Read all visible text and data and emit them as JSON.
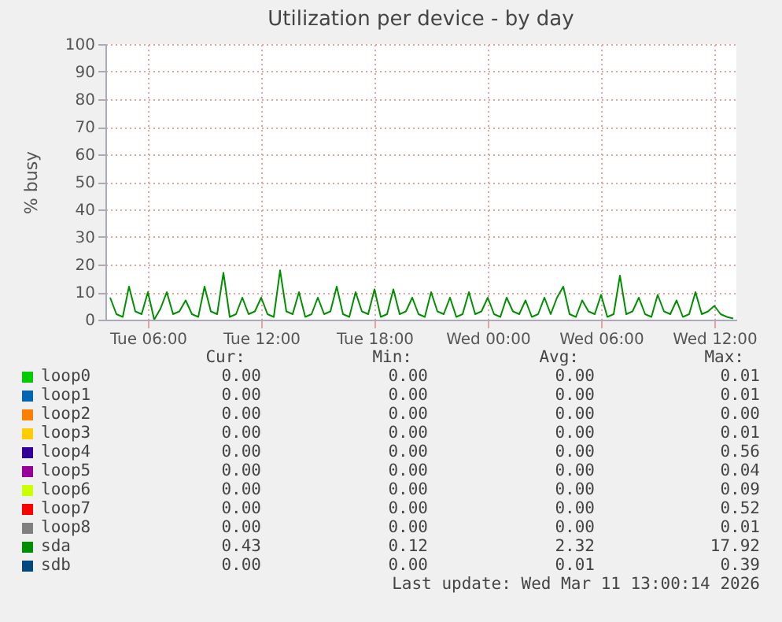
{
  "chart_data": {
    "type": "line",
    "title": "Utilization per device - by day",
    "ylabel": "% busy",
    "x": [
      "2026-03-10T04:00",
      "2026-03-10T04:20",
      "2026-03-10T04:40",
      "2026-03-10T05:00",
      "2026-03-10T05:20",
      "2026-03-10T05:40",
      "2026-03-10T06:00",
      "2026-03-10T06:20",
      "2026-03-10T06:40",
      "2026-03-10T07:00",
      "2026-03-10T07:20",
      "2026-03-10T07:40",
      "2026-03-10T08:00",
      "2026-03-10T08:20",
      "2026-03-10T08:40",
      "2026-03-10T09:00",
      "2026-03-10T09:20",
      "2026-03-10T09:40",
      "2026-03-10T10:00",
      "2026-03-10T10:20",
      "2026-03-10T10:40",
      "2026-03-10T11:00",
      "2026-03-10T11:20",
      "2026-03-10T11:40",
      "2026-03-10T12:00",
      "2026-03-10T12:20",
      "2026-03-10T12:40",
      "2026-03-10T13:00",
      "2026-03-10T13:20",
      "2026-03-10T13:40",
      "2026-03-10T14:00",
      "2026-03-10T14:20",
      "2026-03-10T14:40",
      "2026-03-10T15:00",
      "2026-03-10T15:20",
      "2026-03-10T15:40",
      "2026-03-10T16:00",
      "2026-03-10T16:20",
      "2026-03-10T16:40",
      "2026-03-10T17:00",
      "2026-03-10T17:20",
      "2026-03-10T17:40",
      "2026-03-10T18:00",
      "2026-03-10T18:20",
      "2026-03-10T18:40",
      "2026-03-10T19:00",
      "2026-03-10T19:20",
      "2026-03-10T19:40",
      "2026-03-10T20:00",
      "2026-03-10T20:20",
      "2026-03-10T20:40",
      "2026-03-10T21:00",
      "2026-03-10T21:20",
      "2026-03-10T21:40",
      "2026-03-10T22:00",
      "2026-03-10T22:20",
      "2026-03-10T22:40",
      "2026-03-10T23:00",
      "2026-03-10T23:20",
      "2026-03-10T23:40",
      "2026-03-11T00:00",
      "2026-03-11T00:20",
      "2026-03-11T00:40",
      "2026-03-11T01:00",
      "2026-03-11T01:20",
      "2026-03-11T01:40",
      "2026-03-11T02:00",
      "2026-03-11T02:20",
      "2026-03-11T02:40",
      "2026-03-11T03:00",
      "2026-03-11T03:20",
      "2026-03-11T03:40",
      "2026-03-11T04:00",
      "2026-03-11T04:20",
      "2026-03-11T04:40",
      "2026-03-11T05:00",
      "2026-03-11T05:20",
      "2026-03-11T05:40",
      "2026-03-11T06:00",
      "2026-03-11T06:20",
      "2026-03-11T06:40",
      "2026-03-11T07:00",
      "2026-03-11T07:20",
      "2026-03-11T07:40",
      "2026-03-11T08:00",
      "2026-03-11T08:20",
      "2026-03-11T08:40",
      "2026-03-11T09:00",
      "2026-03-11T09:20",
      "2026-03-11T09:40",
      "2026-03-11T10:00",
      "2026-03-11T10:20",
      "2026-03-11T10:40",
      "2026-03-11T11:00",
      "2026-03-11T11:20",
      "2026-03-11T11:40",
      "2026-03-11T12:00",
      "2026-03-11T12:20",
      "2026-03-11T12:40",
      "2026-03-11T13:00"
    ],
    "series": [
      {
        "name": "loop0",
        "color": "#00cc00",
        "values": [
          null,
          null,
          null,
          null,
          null,
          null,
          null,
          null,
          null,
          null,
          null,
          null,
          null,
          null,
          null,
          null,
          null,
          null,
          null,
          null,
          null,
          null,
          null,
          null,
          null,
          null,
          null,
          null,
          null,
          null,
          null,
          null,
          null,
          null,
          null,
          null,
          null,
          null,
          null,
          null,
          null,
          null,
          null,
          null,
          null,
          null,
          null,
          null,
          null,
          null,
          null,
          null,
          null,
          null,
          null,
          null,
          null,
          null,
          null,
          null,
          null,
          null,
          null,
          null,
          null,
          null,
          null,
          null,
          null,
          null,
          null,
          null,
          null,
          null,
          null,
          null,
          null,
          null,
          null,
          null,
          null,
          null,
          null,
          null,
          null,
          null,
          null,
          null,
          null,
          null,
          null,
          null,
          null,
          null,
          null,
          null,
          null,
          null,
          null,
          null
        ]
      },
      {
        "name": "loop1",
        "color": "#0066b3",
        "values": [
          null,
          null,
          null,
          null,
          null,
          null,
          null,
          null,
          null,
          null,
          null,
          null,
          null,
          null,
          null,
          null,
          null,
          null,
          null,
          null,
          null,
          null,
          null,
          null,
          null,
          null,
          null,
          null,
          null,
          null,
          null,
          null,
          null,
          null,
          null,
          null,
          null,
          null,
          null,
          null,
          null,
          null,
          null,
          null,
          null,
          null,
          null,
          null,
          null,
          null,
          null,
          null,
          null,
          null,
          null,
          null,
          null,
          null,
          null,
          null,
          null,
          null,
          null,
          null,
          null,
          null,
          null,
          null,
          null,
          null,
          null,
          null,
          null,
          null,
          null,
          null,
          null,
          null,
          null,
          null,
          null,
          null,
          null,
          null,
          null,
          null,
          null,
          null,
          null,
          null,
          null,
          null,
          null,
          null,
          null,
          null,
          null,
          null,
          null,
          null
        ]
      },
      {
        "name": "loop2",
        "color": "#ff8000",
        "values": [
          null,
          null,
          null,
          null,
          null,
          null,
          null,
          null,
          null,
          null,
          null,
          null,
          null,
          null,
          null,
          null,
          null,
          null,
          null,
          null,
          null,
          null,
          null,
          null,
          null,
          null,
          null,
          null,
          null,
          null,
          null,
          null,
          null,
          null,
          null,
          null,
          null,
          null,
          null,
          null,
          null,
          null,
          null,
          null,
          null,
          null,
          null,
          null,
          null,
          null,
          null,
          null,
          null,
          null,
          null,
          null,
          null,
          null,
          null,
          null,
          null,
          null,
          null,
          null,
          null,
          null,
          null,
          null,
          null,
          null,
          null,
          null,
          null,
          null,
          null,
          null,
          null,
          null,
          null,
          null,
          null,
          null,
          null,
          null,
          null,
          null,
          null,
          null,
          null,
          null,
          null,
          null,
          null,
          null,
          null,
          null,
          null,
          null,
          null,
          null
        ]
      },
      {
        "name": "loop3",
        "color": "#ffcc00",
        "values": [
          null,
          null,
          null,
          null,
          null,
          null,
          null,
          null,
          null,
          null,
          null,
          null,
          null,
          null,
          null,
          null,
          null,
          null,
          null,
          null,
          null,
          null,
          null,
          null,
          null,
          null,
          null,
          null,
          null,
          null,
          null,
          null,
          null,
          null,
          null,
          null,
          null,
          null,
          null,
          null,
          null,
          null,
          null,
          null,
          null,
          null,
          null,
          null,
          null,
          null,
          null,
          null,
          null,
          null,
          null,
          null,
          null,
          null,
          null,
          null,
          null,
          null,
          null,
          null,
          null,
          null,
          null,
          null,
          null,
          null,
          null,
          null,
          null,
          null,
          null,
          null,
          null,
          null,
          null,
          null,
          null,
          null,
          null,
          null,
          null,
          null,
          null,
          null,
          null,
          null,
          null,
          null,
          null,
          null,
          null,
          null,
          null,
          null,
          null,
          null
        ]
      },
      {
        "name": "loop4",
        "color": "#330099",
        "values": [
          null,
          null,
          null,
          null,
          null,
          null,
          null,
          null,
          null,
          null,
          null,
          null,
          null,
          null,
          null,
          null,
          null,
          null,
          null,
          null,
          null,
          null,
          null,
          null,
          null,
          null,
          null,
          null,
          null,
          null,
          null,
          null,
          null,
          null,
          null,
          null,
          null,
          null,
          null,
          null,
          null,
          null,
          null,
          null,
          null,
          null,
          null,
          null,
          null,
          null,
          null,
          null,
          null,
          null,
          null,
          null,
          null,
          null,
          null,
          null,
          null,
          null,
          null,
          null,
          null,
          null,
          null,
          null,
          null,
          null,
          null,
          null,
          null,
          null,
          null,
          null,
          null,
          null,
          null,
          null,
          null,
          null,
          null,
          null,
          null,
          null,
          null,
          null,
          null,
          null,
          null,
          null,
          null,
          null,
          null,
          null,
          null,
          null,
          null,
          null
        ]
      },
      {
        "name": "loop5",
        "color": "#990099",
        "values": [
          null,
          null,
          null,
          null,
          null,
          null,
          null,
          null,
          null,
          null,
          null,
          null,
          null,
          null,
          null,
          null,
          null,
          null,
          null,
          null,
          null,
          null,
          null,
          null,
          null,
          null,
          null,
          null,
          null,
          null,
          null,
          null,
          null,
          null,
          null,
          null,
          null,
          null,
          null,
          null,
          null,
          null,
          null,
          null,
          null,
          null,
          null,
          null,
          null,
          null,
          null,
          null,
          null,
          null,
          null,
          null,
          null,
          null,
          null,
          null,
          null,
          null,
          null,
          null,
          null,
          null,
          null,
          null,
          null,
          null,
          null,
          null,
          null,
          null,
          null,
          null,
          null,
          null,
          null,
          null,
          null,
          null,
          null,
          null,
          null,
          null,
          null,
          null,
          null,
          null,
          null,
          null,
          null,
          null,
          null,
          null,
          null,
          null,
          null,
          null
        ]
      },
      {
        "name": "loop6",
        "color": "#ccff00",
        "values": [
          null,
          null,
          null,
          null,
          null,
          null,
          null,
          null,
          null,
          null,
          null,
          null,
          null,
          null,
          null,
          null,
          null,
          null,
          null,
          null,
          null,
          null,
          null,
          null,
          null,
          null,
          null,
          null,
          null,
          null,
          null,
          null,
          null,
          null,
          null,
          null,
          null,
          null,
          null,
          null,
          null,
          null,
          null,
          null,
          null,
          null,
          null,
          null,
          null,
          null,
          null,
          null,
          null,
          null,
          null,
          null,
          null,
          null,
          null,
          null,
          null,
          null,
          null,
          null,
          null,
          null,
          null,
          null,
          null,
          null,
          null,
          null,
          null,
          null,
          null,
          null,
          null,
          null,
          null,
          null,
          null,
          null,
          null,
          null,
          null,
          null,
          null,
          null,
          null,
          null,
          null,
          null,
          null,
          null,
          null,
          null,
          null,
          null,
          null,
          null
        ]
      },
      {
        "name": "loop7",
        "color": "#ff0000",
        "values": [
          null,
          null,
          null,
          null,
          null,
          null,
          null,
          null,
          null,
          null,
          null,
          null,
          null,
          null,
          null,
          null,
          null,
          null,
          null,
          null,
          null,
          null,
          null,
          null,
          null,
          null,
          null,
          null,
          null,
          null,
          null,
          null,
          null,
          null,
          null,
          null,
          null,
          null,
          null,
          null,
          null,
          null,
          null,
          null,
          null,
          null,
          null,
          null,
          null,
          null,
          null,
          null,
          null,
          null,
          null,
          null,
          null,
          null,
          null,
          null,
          null,
          null,
          null,
          null,
          null,
          null,
          null,
          null,
          null,
          null,
          null,
          null,
          null,
          null,
          null,
          null,
          null,
          null,
          null,
          null,
          null,
          null,
          null,
          null,
          null,
          null,
          null,
          null,
          null,
          null,
          null,
          null,
          null,
          null,
          null,
          null,
          null,
          null,
          null,
          null
        ]
      },
      {
        "name": "loop8",
        "color": "#808080",
        "values": [
          null,
          null,
          null,
          null,
          null,
          null,
          null,
          null,
          null,
          null,
          null,
          null,
          null,
          null,
          null,
          null,
          null,
          null,
          null,
          null,
          null,
          null,
          null,
          null,
          null,
          null,
          null,
          null,
          null,
          null,
          null,
          null,
          null,
          null,
          null,
          null,
          null,
          null,
          null,
          null,
          null,
          null,
          null,
          null,
          null,
          null,
          null,
          null,
          null,
          null,
          null,
          null,
          null,
          null,
          null,
          null,
          null,
          null,
          null,
          null,
          null,
          null,
          null,
          null,
          null,
          null,
          null,
          null,
          null,
          null,
          null,
          null,
          null,
          null,
          null,
          null,
          null,
          null,
          null,
          null,
          null,
          null,
          null,
          null,
          null,
          null,
          null,
          null,
          null,
          null,
          null,
          null,
          null,
          null,
          null,
          null,
          null,
          null,
          null,
          null
        ]
      },
      {
        "name": "sda",
        "color": "#008f00",
        "values": [
          8,
          2,
          1,
          12,
          3,
          2,
          10,
          0,
          4,
          10,
          2,
          3,
          7,
          2,
          1,
          12,
          3,
          2,
          17,
          1,
          2,
          8,
          2,
          3,
          8,
          2,
          1,
          17.9,
          3,
          2,
          10,
          1,
          2,
          8,
          2,
          3,
          12,
          2,
          1,
          10,
          3,
          2,
          11,
          1,
          2,
          11,
          2,
          3,
          8,
          2,
          1,
          10,
          3,
          2,
          8,
          1,
          2,
          10,
          2,
          3,
          8,
          2,
          1,
          8,
          3,
          2,
          7,
          1,
          2,
          8,
          2,
          8,
          12,
          2,
          1,
          7,
          3,
          2,
          9,
          1,
          2,
          16,
          2,
          3,
          8,
          2,
          1,
          9,
          3,
          2,
          7,
          1,
          2,
          10,
          2,
          3,
          5,
          2,
          1,
          0.43
        ]
      },
      {
        "name": "sdb",
        "color": "#00487d",
        "values": [
          null,
          null,
          null,
          null,
          null,
          null,
          null,
          null,
          null,
          null,
          null,
          null,
          null,
          null,
          null,
          null,
          null,
          null,
          null,
          null,
          null,
          null,
          null,
          null,
          null,
          null,
          null,
          null,
          null,
          null,
          null,
          null,
          null,
          null,
          null,
          null,
          null,
          null,
          null,
          null,
          null,
          null,
          null,
          null,
          null,
          null,
          null,
          null,
          null,
          null,
          null,
          null,
          null,
          null,
          null,
          null,
          null,
          null,
          null,
          null,
          null,
          null,
          null,
          null,
          null,
          null,
          null,
          null,
          null,
          null,
          null,
          null,
          null,
          null,
          null,
          null,
          null,
          null,
          null,
          null,
          null,
          null,
          null,
          null,
          null,
          null,
          null,
          null,
          null,
          null,
          null,
          null,
          null,
          null,
          null,
          null,
          null,
          null,
          null,
          null
        ]
      }
    ],
    "xlim": [
      "2026-03-10T03:45",
      "2026-03-11T13:10"
    ],
    "xticks": [
      {
        "value": "2026-03-10T06:00",
        "label": "Tue 06:00"
      },
      {
        "value": "2026-03-10T12:00",
        "label": "Tue 12:00"
      },
      {
        "value": "2026-03-10T18:00",
        "label": "Tue 18:00"
      },
      {
        "value": "2026-03-11T00:00",
        "label": "Wed 00:00"
      },
      {
        "value": "2026-03-11T06:00",
        "label": "Wed 06:00"
      },
      {
        "value": "2026-03-11T12:00",
        "label": "Wed 12:00"
      }
    ],
    "ylim": [
      0,
      100
    ],
    "yticks": [
      0,
      10,
      20,
      30,
      40,
      50,
      60,
      70,
      80,
      90,
      100
    ],
    "grid": true,
    "legend": "bottom",
    "marker": "none",
    "line_style": "solid",
    "annotations": [
      "Cur:",
      "Min:",
      "Avg:",
      "Max:",
      "0.00",
      "0.00",
      "0.00",
      "0.01",
      "0.00",
      "0.00",
      "0.00",
      "0.01",
      "0.00",
      "0.00",
      "0.00",
      "0.00",
      "0.00",
      "0.00",
      "0.00",
      "0.01",
      "0.00",
      "0.00",
      "0.00",
      "0.56",
      "0.00",
      "0.00",
      "0.00",
      "0.04",
      "0.00",
      "0.00",
      "0.00",
      "0.09",
      "0.00",
      "0.00",
      "0.00",
      "0.52",
      "0.00",
      "0.00",
      "0.00",
      "0.01",
      "0.43",
      "0.12",
      "2.32",
      "17.92",
      "0.00",
      "0.00",
      "0.01",
      "0.39",
      "Last update: Wed Mar 11 13:00:14 2026"
    ]
  }
}
